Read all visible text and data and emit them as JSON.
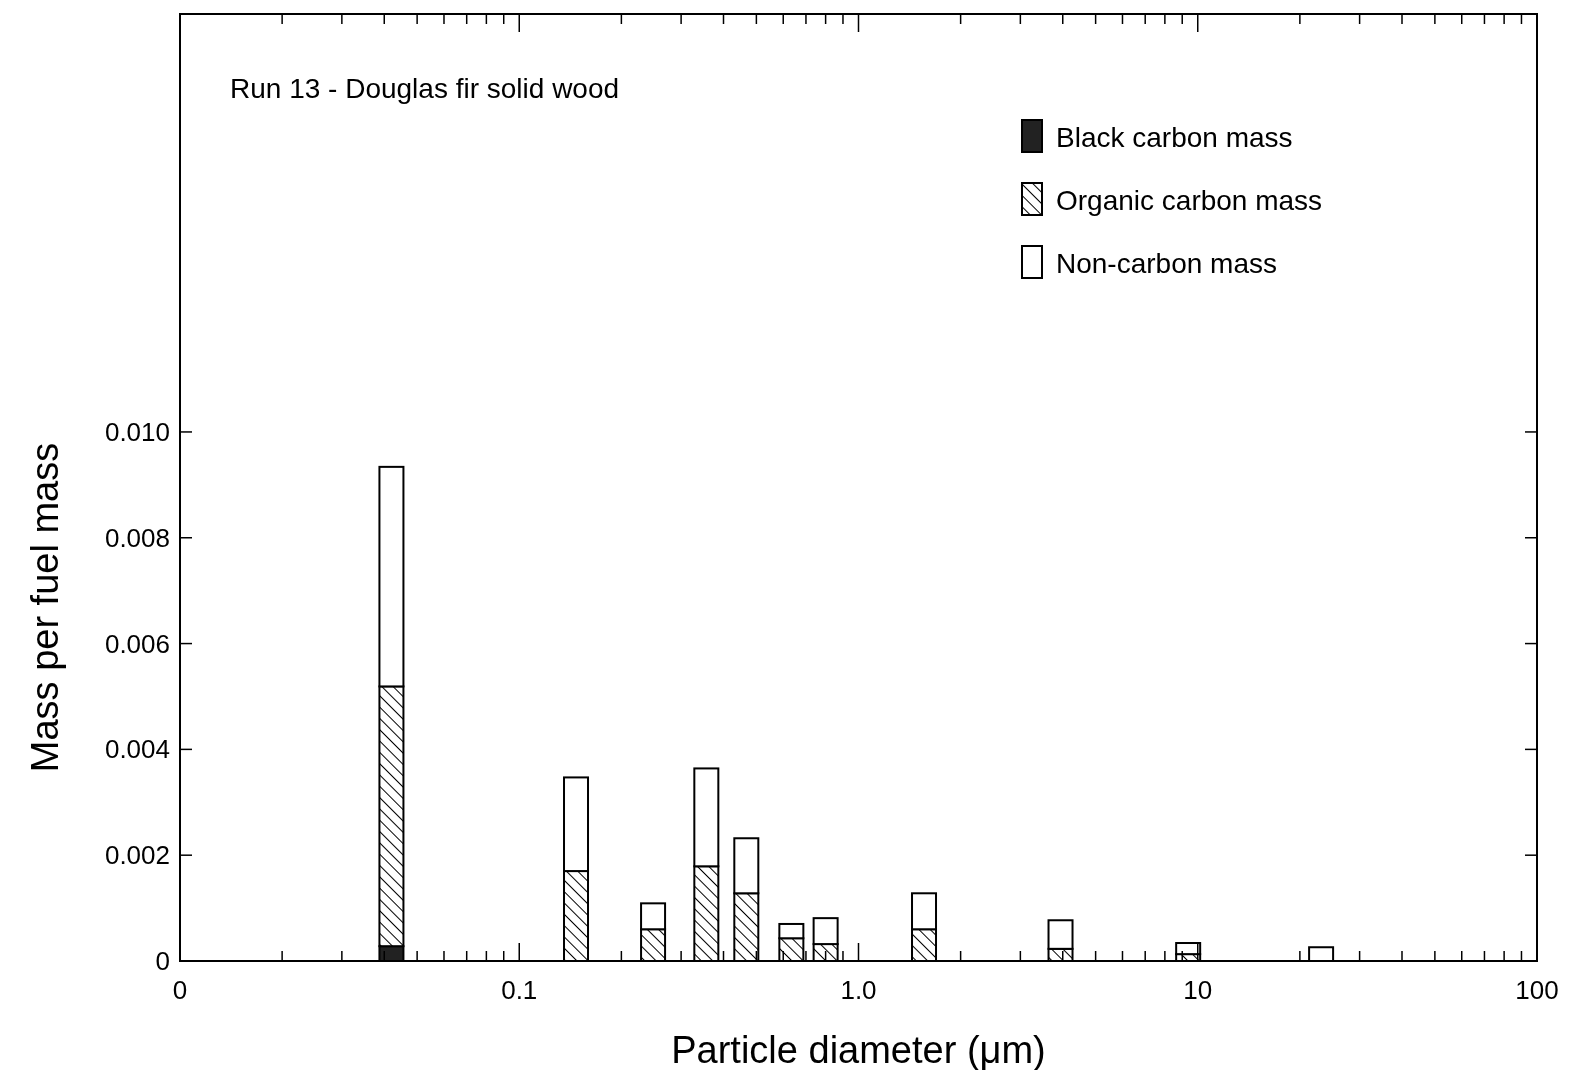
{
  "chart_data": {
    "type": "bar",
    "stacked": true,
    "log": "x",
    "xlabel": "Particle diameter (μm)",
    "ylabel": "Mass per fuel mass",
    "annotations": [
      "Run 13 - Douglas fir solid wood"
    ],
    "x": [
      0.042,
      0.147,
      0.248,
      0.356,
      0.467,
      0.634,
      0.8,
      1.56,
      3.94,
      9.37,
      23.1
    ],
    "series": [
      {
        "name": "Black carbon mass",
        "color": "#222222",
        "values": [
          0.00028,
          0,
          0,
          0,
          0,
          0,
          0,
          0,
          0,
          0,
          0
        ]
      },
      {
        "name": "Organic carbon mass",
        "color": "#000000",
        "values": [
          0.00491,
          0.0017,
          0.0006,
          0.00179,
          0.00128,
          0.00043,
          0.00032,
          0.0006,
          0.00023,
          0.00013,
          0
        ]
      },
      {
        "name": "Non-carbon mass",
        "color": "#ffffff",
        "values": [
          0.00415,
          0.00177,
          0.00049,
          0.00185,
          0.00104,
          0.00027,
          0.00049,
          0.00068,
          0.00054,
          0.00021,
          0.00026
        ]
      }
    ],
    "xlim": [
      0.01,
      100
    ],
    "xticks": [
      {
        "value": 0.01,
        "label": "0"
      },
      {
        "value": 0.02,
        "label": null
      },
      {
        "value": 0.03,
        "label": null
      },
      {
        "value": 0.04,
        "label": null
      },
      {
        "value": 0.05,
        "label": null
      },
      {
        "value": 0.06,
        "label": null
      },
      {
        "value": 0.07,
        "label": null
      },
      {
        "value": 0.08,
        "label": null
      },
      {
        "value": 0.09,
        "label": null
      },
      0.1,
      {
        "value": 0.2,
        "label": null
      },
      {
        "value": 0.3,
        "label": null
      },
      {
        "value": 0.4,
        "label": null
      },
      {
        "value": 0.5,
        "label": null
      },
      {
        "value": 0.6,
        "label": null
      },
      {
        "value": 0.7,
        "label": null
      },
      {
        "value": 0.8,
        "label": null
      },
      {
        "value": 0.9,
        "label": null
      },
      {
        "value": 1,
        "label": "1.0"
      },
      {
        "value": 2,
        "label": null
      },
      {
        "value": 3,
        "label": null
      },
      {
        "value": 4,
        "label": null
      },
      {
        "value": 5,
        "label": null
      },
      {
        "value": 6,
        "label": null
      },
      {
        "value": 7,
        "label": null
      },
      {
        "value": 8,
        "label": null
      },
      {
        "value": 9,
        "label": null
      },
      10,
      {
        "value": 20,
        "label": null
      },
      {
        "value": 30,
        "label": null
      },
      {
        "value": 40,
        "label": null
      },
      {
        "value": 50,
        "label": null
      },
      {
        "value": 60,
        "label": null
      },
      {
        "value": 70,
        "label": null
      },
      {
        "value": 80,
        "label": null
      },
      {
        "value": 90,
        "label": null
      },
      100
    ],
    "ylim": [
      0,
      0.0179
    ],
    "yticks": [
      0,
      {
        "value": 0.002,
        "label": "0.002"
      },
      {
        "value": 0.004,
        "label": "0.004"
      },
      {
        "value": 0.006,
        "label": "0.006"
      },
      {
        "value": 0.008,
        "label": "0.008"
      },
      {
        "value": 0.01,
        "label": "0.010"
      }
    ],
    "legend": "top right",
    "grid": false
  }
}
